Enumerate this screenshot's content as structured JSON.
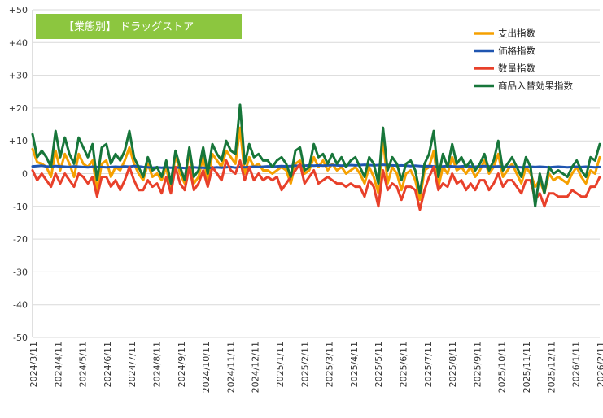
{
  "chart_data": {
    "type": "line",
    "title": "【業態別】 ドラッグストア",
    "title_bg": "#8cc63f",
    "xlabel": "",
    "ylabel": "",
    "ylim": [
      -50,
      50
    ],
    "yticks": [
      "-50",
      "-40",
      "-30",
      "-20",
      "-10",
      "0",
      "+10",
      "+20",
      "+30",
      "+40",
      "+50"
    ],
    "ytick_values": [
      -50,
      -40,
      -30,
      -20,
      -10,
      0,
      10,
      20,
      30,
      40,
      50
    ],
    "grid": true,
    "legend_position": "top-right",
    "x_tick_labels": [
      "2024/3/11",
      "2024/4/11",
      "2024/5/11",
      "2024/6/11",
      "2024/7/11",
      "2024/8/11",
      "2024/9/11",
      "2024/10/11",
      "2024/11/11",
      "2024/12/11",
      "2025/1/11",
      "2025/2/11",
      "2025/3/11",
      "2025/4/11",
      "2025/5/11",
      "2025/6/11",
      "2025/7/11",
      "2025/8/11",
      "2025/9/11",
      "2025/10/11",
      "2025/11/11",
      "2025/12/11",
      "2026/1/11",
      "2026/2/11"
    ],
    "series": [
      {
        "name": "支出指数",
        "color": "#f5a000",
        "values": [
          7.5,
          3.5,
          3,
          2,
          -1,
          7,
          1,
          6,
          3,
          -1,
          6,
          3,
          2,
          4,
          -5,
          3,
          4,
          -1,
          2,
          1,
          4,
          8,
          3,
          0,
          -2,
          3,
          -1,
          0,
          -2,
          2,
          -5,
          6,
          0,
          -3,
          7,
          -3,
          -1,
          5,
          -2,
          6,
          4,
          2,
          7,
          5,
          3,
          14,
          0,
          5,
          2,
          3,
          1,
          1,
          0,
          1,
          2,
          1,
          -3,
          3,
          4,
          0,
          1,
          5,
          2,
          4,
          1,
          3,
          1,
          2,
          0,
          1,
          2,
          0,
          -3,
          2,
          -1,
          -6,
          11,
          -3,
          2,
          0,
          -5,
          0,
          1,
          -2,
          -8,
          1,
          2,
          7,
          -4,
          2,
          0,
          5,
          1,
          2,
          0,
          2,
          -1,
          1,
          4,
          0,
          2,
          6,
          -1,
          1,
          3,
          0,
          -3,
          2,
          0,
          -4,
          -2,
          -6,
          0,
          -2,
          -1,
          -2,
          -3,
          0,
          2,
          -1,
          -3,
          1,
          0,
          5
        ]
      },
      {
        "name": "価格指数",
        "color": "#1f55b0",
        "values": [
          2.2,
          2.3,
          2.4,
          2.2,
          2.1,
          2.3,
          2.2,
          2.1,
          2.0,
          2.2,
          2.1,
          2.0,
          1.9,
          2.1,
          2.0,
          2.0,
          1.9,
          2.0,
          2.1,
          2.0,
          2.2,
          2.1,
          2.3,
          2.2,
          2.0,
          1.9,
          1.8,
          1.9,
          1.8,
          1.9,
          1.8,
          1.9,
          1.8,
          1.7,
          1.8,
          1.9,
          1.8,
          1.8,
          1.7,
          1.8,
          1.9,
          1.8,
          1.9,
          2.0,
          1.8,
          2.0,
          1.9,
          2.0,
          2.1,
          2.0,
          2.1,
          2.2,
          2.1,
          2.2,
          2.3,
          2.2,
          2.3,
          2.4,
          2.3,
          2.4,
          2.5,
          2.4,
          2.5,
          2.4,
          2.5,
          2.6,
          2.5,
          2.4,
          2.5,
          2.6,
          2.5,
          2.6,
          2.7,
          2.6,
          2.5,
          2.6,
          2.7,
          2.6,
          2.5,
          2.4,
          2.5,
          2.4,
          2.3,
          2.4,
          2.3,
          2.2,
          2.3,
          2.2,
          2.1,
          2.2,
          2.3,
          2.2,
          2.1,
          2.2,
          2.3,
          2.2,
          2.1,
          2.2,
          2.3,
          2.2,
          2.1,
          2.2,
          2.1,
          2.0,
          2.1,
          2.0,
          1.9,
          2.0,
          2.1,
          2.0,
          2.1,
          2.0,
          1.9,
          2.0,
          2.1,
          2.0,
          1.9,
          2.0,
          2.1,
          2.0,
          2.1,
          2.0,
          1.9,
          2.0
        ]
      },
      {
        "name": "数量指数",
        "color": "#e8402a",
        "values": [
          1,
          -2,
          0,
          -2,
          -4,
          0,
          -3,
          0,
          -2,
          -4,
          0,
          -1,
          -3,
          -1,
          -7,
          -1,
          -1,
          -4,
          -2,
          -5,
          -2,
          2,
          -2,
          -5,
          -5,
          -2,
          -4,
          -3,
          -6,
          -1,
          -6,
          2,
          -3,
          -5,
          2,
          -5,
          -3,
          1,
          -4,
          2,
          0,
          -2,
          4,
          1,
          0,
          4,
          -2,
          2,
          -2,
          0,
          -2,
          -1,
          -2,
          -1,
          -5,
          -3,
          -1,
          1,
          3,
          -3,
          -1,
          1,
          -3,
          -2,
          -1,
          -2,
          -3,
          -3,
          -4,
          -3,
          -4,
          -4,
          -7,
          -2,
          -4,
          -10,
          1,
          -5,
          -3,
          -4,
          -8,
          -4,
          -4,
          -5,
          -11,
          -5,
          -1,
          2,
          -5,
          -3,
          -4,
          0,
          -3,
          -2,
          -5,
          -3,
          -5,
          -2,
          -2,
          -5,
          -3,
          0,
          -4,
          -2,
          -2,
          -4,
          -6,
          -2,
          -2,
          -8,
          -6,
          -10,
          -6,
          -6,
          -7,
          -7,
          -7,
          -5,
          -6,
          -7,
          -7,
          -4,
          -4,
          -1
        ]
      },
      {
        "name": "商品入替効果指数",
        "color": "#17763a",
        "values": [
          12,
          5,
          7,
          5,
          2,
          13,
          5,
          11,
          6,
          3,
          11,
          8,
          5,
          9,
          -2,
          8,
          9,
          3,
          6,
          4,
          7,
          13,
          5,
          2,
          -1,
          5,
          1,
          2,
          -1,
          4,
          -3,
          7,
          2,
          -2,
          8,
          -1,
          1,
          8,
          0,
          9,
          6,
          4,
          10,
          7,
          6,
          21,
          3,
          9,
          5,
          6,
          4,
          4,
          2,
          4,
          5,
          3,
          -1,
          7,
          8,
          1,
          2,
          9,
          5,
          6,
          3,
          6,
          3,
          5,
          2,
          4,
          5,
          2,
          -1,
          5,
          3,
          -3,
          14,
          1,
          5,
          3,
          -2,
          3,
          4,
          1,
          -6,
          3,
          6,
          13,
          -1,
          6,
          2,
          9,
          3,
          5,
          2,
          4,
          1,
          3,
          6,
          1,
          4,
          10,
          1,
          3,
          5,
          2,
          -1,
          5,
          2,
          -10,
          0,
          -6,
          2,
          0,
          1,
          0,
          -1,
          2,
          4,
          1,
          -1,
          5,
          4,
          9
        ]
      }
    ]
  }
}
